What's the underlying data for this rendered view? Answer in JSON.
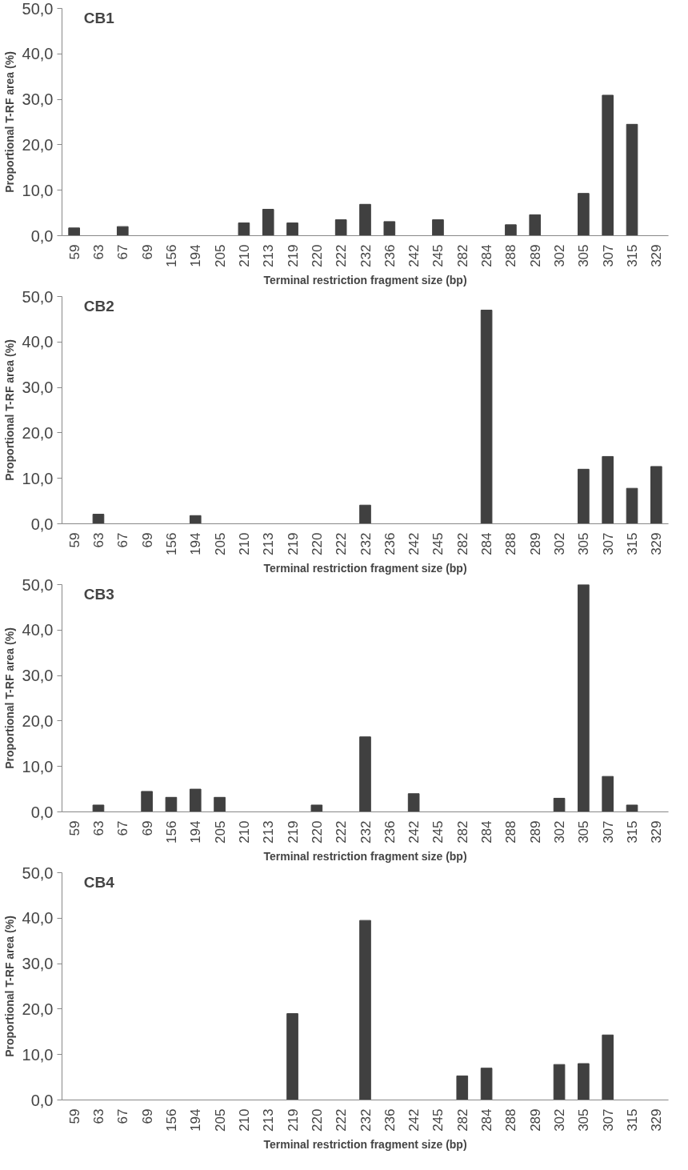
{
  "chart_data": [
    {
      "type": "bar",
      "title": "CB1",
      "xlabel": "Terminal restriction fragment size (bp)",
      "ylabel": "Proportional T-RF area (%)",
      "categories": [
        "59",
        "63",
        "67",
        "69",
        "156",
        "194",
        "205",
        "210",
        "213",
        "219",
        "220",
        "222",
        "232",
        "236",
        "242",
        "245",
        "282",
        "284",
        "288",
        "289",
        "302",
        "305",
        "307",
        "315",
        "329"
      ],
      "series": [
        {
          "color": "#404040",
          "values": [
            1.7,
            null,
            2.0,
            null,
            null,
            null,
            null,
            2.8,
            5.8,
            2.8,
            null,
            3.5,
            6.9,
            3.1,
            null,
            3.5,
            null,
            null,
            2.4,
            4.6,
            null,
            9.3,
            30.9,
            24.5,
            null
          ]
        }
      ],
      "ylim": [
        0,
        50
      ],
      "yticks": [
        {
          "value": 0,
          "label": "0,0"
        },
        {
          "value": 10,
          "label": "10,0"
        },
        {
          "value": 20,
          "label": "20,0"
        },
        {
          "value": 30,
          "label": "30,0"
        },
        {
          "value": 40,
          "label": "40,0"
        },
        {
          "value": 50,
          "label": "50,0"
        }
      ],
      "grid": false
    },
    {
      "type": "bar",
      "title": "CB2",
      "xlabel": "Terminal restriction fragment size (bp)",
      "ylabel": "Proportional T-RF area (%)",
      "categories": [
        "59",
        "63",
        "67",
        "69",
        "156",
        "194",
        "205",
        "210",
        "213",
        "219",
        "220",
        "222",
        "232",
        "236",
        "242",
        "245",
        "282",
        "284",
        "288",
        "289",
        "302",
        "305",
        "307",
        "315",
        "329"
      ],
      "series": [
        {
          "color": "#404040",
          "values": [
            null,
            2.1,
            null,
            null,
            null,
            1.8,
            null,
            null,
            null,
            null,
            null,
            null,
            4.1,
            null,
            null,
            null,
            null,
            47.0,
            null,
            null,
            null,
            12.0,
            14.8,
            7.8,
            12.6
          ]
        }
      ],
      "ylim": [
        0,
        50
      ],
      "yticks": [
        {
          "value": 0,
          "label": "0,0"
        },
        {
          "value": 10,
          "label": "10,0"
        },
        {
          "value": 20,
          "label": "20,0"
        },
        {
          "value": 30,
          "label": "30,0"
        },
        {
          "value": 40,
          "label": "40,0"
        },
        {
          "value": 50,
          "label": "50,0"
        }
      ],
      "grid": false
    },
    {
      "type": "bar",
      "title": "CB3",
      "xlabel": "Terminal restriction fragment size (bp)",
      "ylabel": "Proportional T-RF area (%)",
      "categories": [
        "59",
        "63",
        "67",
        "69",
        "156",
        "194",
        "205",
        "210",
        "213",
        "219",
        "220",
        "222",
        "232",
        "236",
        "242",
        "245",
        "282",
        "284",
        "288",
        "289",
        "302",
        "305",
        "307",
        "315",
        "329"
      ],
      "series": [
        {
          "color": "#404040",
          "values": [
            null,
            1.5,
            null,
            4.5,
            3.2,
            5.0,
            3.2,
            null,
            null,
            null,
            1.5,
            null,
            16.5,
            null,
            4.0,
            null,
            null,
            null,
            null,
            null,
            3.0,
            50.0,
            7.8,
            1.5,
            null
          ]
        }
      ],
      "ylim": [
        0,
        50
      ],
      "yticks": [
        {
          "value": 0,
          "label": "0,0"
        },
        {
          "value": 10,
          "label": "10,0"
        },
        {
          "value": 20,
          "label": "20,0"
        },
        {
          "value": 30,
          "label": "30,0"
        },
        {
          "value": 40,
          "label": "40,0"
        },
        {
          "value": 50,
          "label": "50,0"
        }
      ],
      "grid": false
    },
    {
      "type": "bar",
      "title": "CB4",
      "xlabel": "Terminal restriction fragment size (bp)",
      "ylabel": "Proportional T-RF area (%)",
      "categories": [
        "59",
        "63",
        "67",
        "69",
        "156",
        "194",
        "205",
        "210",
        "213",
        "219",
        "220",
        "222",
        "232",
        "236",
        "242",
        "245",
        "282",
        "284",
        "288",
        "289",
        "302",
        "305",
        "307",
        "315",
        "329"
      ],
      "series": [
        {
          "color": "#404040",
          "values": [
            null,
            null,
            null,
            null,
            null,
            null,
            null,
            null,
            null,
            19.0,
            null,
            null,
            39.5,
            null,
            null,
            null,
            5.3,
            7.0,
            null,
            null,
            7.8,
            8.0,
            14.3,
            null,
            null
          ]
        }
      ],
      "ylim": [
        0,
        50
      ],
      "yticks": [
        {
          "value": 0,
          "label": "0,0"
        },
        {
          "value": 10,
          "label": "10,0"
        },
        {
          "value": 20,
          "label": "20,0"
        },
        {
          "value": 30,
          "label": "30,0"
        },
        {
          "value": 40,
          "label": "40,0"
        },
        {
          "value": 50,
          "label": "50,0"
        }
      ],
      "grid": false
    }
  ]
}
